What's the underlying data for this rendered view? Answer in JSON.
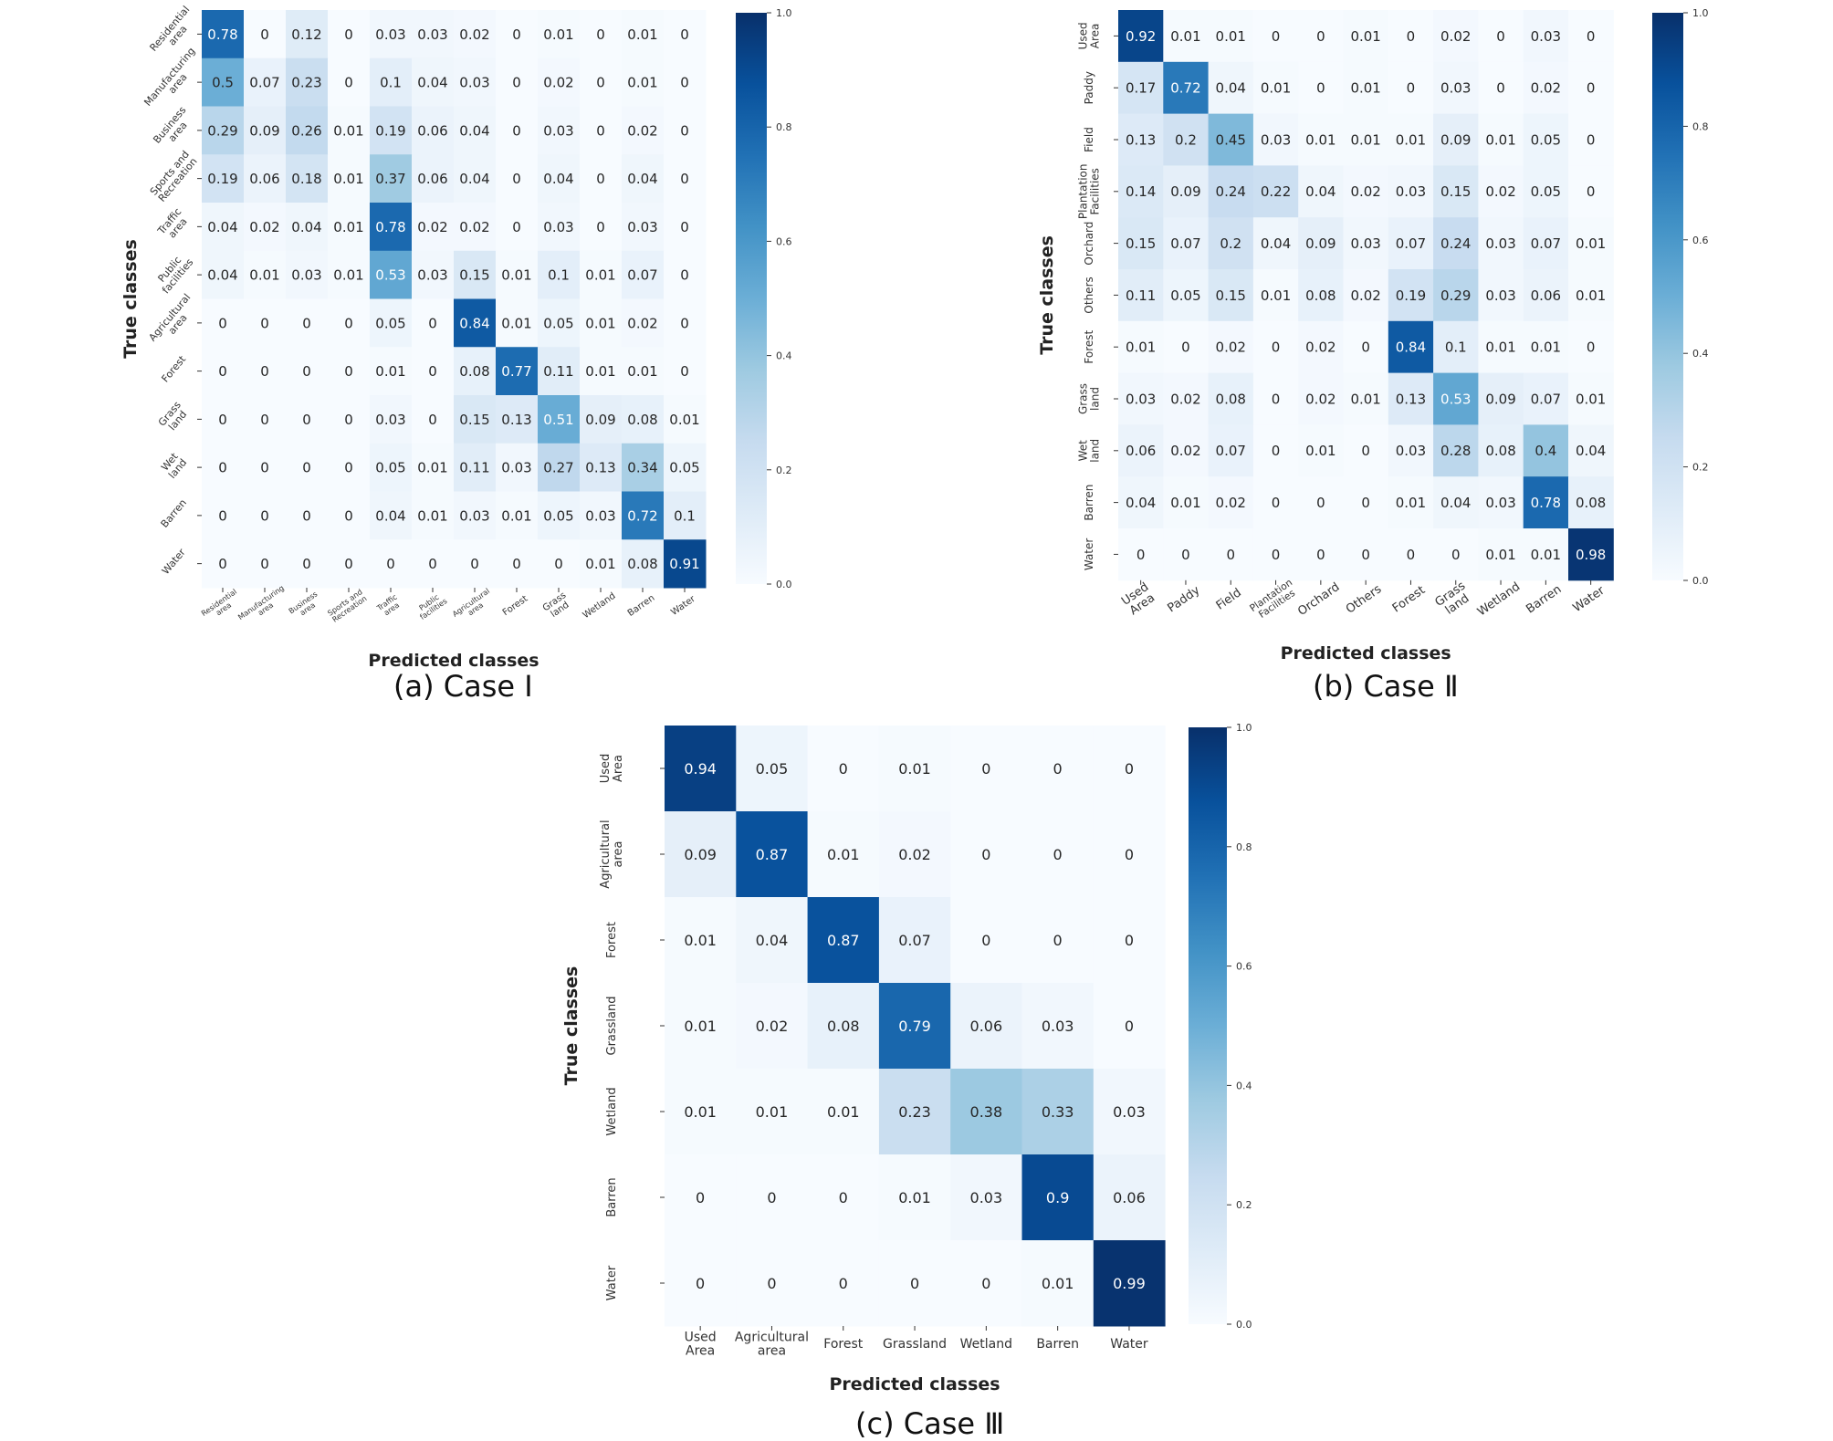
{
  "chart_data": [
    {
      "type": "heatmap",
      "caption": "(a) Case Ⅰ",
      "xlabel": "Predicted classes",
      "ylabel": "True classes",
      "colorbar": {
        "min": 0.0,
        "max": 1.0,
        "ticks": [
          "0.0",
          "0.2",
          "0.4",
          "0.6",
          "0.8",
          "1.0"
        ],
        "colormap": "Blues"
      },
      "row_labels": [
        "Residential area",
        "Manufacturing area",
        "Business area",
        "Sports and Recreation",
        "Traffic area",
        "Public facilities",
        "Agricultural area",
        "Forest",
        "Grass land",
        "Wet land",
        "Barren",
        "Water"
      ],
      "col_labels": [
        "Residential area",
        "Manufacturing area",
        "Business area",
        "Sports and Recreation",
        "Traffic area",
        "Public facilities",
        "Agricultural area",
        "Forest",
        "Grass land",
        "Wetland",
        "Barren",
        "Water"
      ],
      "values": [
        [
          "0.78",
          "0",
          "0.12",
          "0",
          "0.03",
          "0.03",
          "0.02",
          "0",
          "0.01",
          "0",
          "0.01",
          "0"
        ],
        [
          "0.5",
          "0.07",
          "0.23",
          "0",
          "0.1",
          "0.04",
          "0.03",
          "0",
          "0.02",
          "0",
          "0.01",
          "0"
        ],
        [
          "0.29",
          "0.09",
          "0.26",
          "0.01",
          "0.19",
          "0.06",
          "0.04",
          "0",
          "0.03",
          "0",
          "0.02",
          "0"
        ],
        [
          "0.19",
          "0.06",
          "0.18",
          "0.01",
          "0.37",
          "0.06",
          "0.04",
          "0",
          "0.04",
          "0",
          "0.04",
          "0"
        ],
        [
          "0.04",
          "0.02",
          "0.04",
          "0.01",
          "0.78",
          "0.02",
          "0.02",
          "0",
          "0.03",
          "0",
          "0.03",
          "0"
        ],
        [
          "0.04",
          "0.01",
          "0.03",
          "0.01",
          "0.53",
          "0.03",
          "0.15",
          "0.01",
          "0.1",
          "0.01",
          "0.07",
          "0"
        ],
        [
          "0",
          "0",
          "0",
          "0",
          "0.05",
          "0",
          "0.84",
          "0.01",
          "0.05",
          "0.01",
          "0.02",
          "0"
        ],
        [
          "0",
          "0",
          "0",
          "0",
          "0.01",
          "0",
          "0.08",
          "0.77",
          "0.11",
          "0.01",
          "0.01",
          "0"
        ],
        [
          "0",
          "0",
          "0",
          "0",
          "0.03",
          "0",
          "0.15",
          "0.13",
          "0.51",
          "0.09",
          "0.08",
          "0.01"
        ],
        [
          "0",
          "0",
          "0",
          "0",
          "0.05",
          "0.01",
          "0.11",
          "0.03",
          "0.27",
          "0.13",
          "0.34",
          "0.05"
        ],
        [
          "0",
          "0",
          "0",
          "0",
          "0.04",
          "0.01",
          "0.03",
          "0.01",
          "0.05",
          "0.03",
          "0.72",
          "0.1"
        ],
        [
          "0",
          "0",
          "0",
          "0",
          "0",
          "0",
          "0",
          "0",
          "0",
          "0.01",
          "0.08",
          "0.91"
        ]
      ]
    },
    {
      "type": "heatmap",
      "caption": "(b) Case Ⅱ",
      "xlabel": "Predicted classes",
      "ylabel": "True classes",
      "colorbar": {
        "min": 0.0,
        "max": 1.0,
        "ticks": [
          "0.0",
          "0.2",
          "0.4",
          "0.6",
          "0.8",
          "1.0"
        ],
        "colormap": "Blues"
      },
      "row_labels": [
        "Used Area",
        "Paddy",
        "Field",
        "Plantation Facilities",
        "Orchard",
        "Others",
        "Forest",
        "Grass land",
        "Wet land",
        "Barren",
        "Water"
      ],
      "col_labels": [
        "Used Area",
        "Paddy",
        "Field",
        "Plantation Facilities",
        "Orchard",
        "Others",
        "Forest",
        "Grass land",
        "Wetland",
        "Barren",
        "Water"
      ],
      "values": [
        [
          "0.92",
          "0.01",
          "0.01",
          "0",
          "0",
          "0.01",
          "0",
          "0.02",
          "0",
          "0.03",
          "0"
        ],
        [
          "0.17",
          "0.72",
          "0.04",
          "0.01",
          "0",
          "0.01",
          "0",
          "0.03",
          "0",
          "0.02",
          "0"
        ],
        [
          "0.13",
          "0.2",
          "0.45",
          "0.03",
          "0.01",
          "0.01",
          "0.01",
          "0.09",
          "0.01",
          "0.05",
          "0"
        ],
        [
          "0.14",
          "0.09",
          "0.24",
          "0.22",
          "0.04",
          "0.02",
          "0.03",
          "0.15",
          "0.02",
          "0.05",
          "0"
        ],
        [
          "0.15",
          "0.07",
          "0.2",
          "0.04",
          "0.09",
          "0.03",
          "0.07",
          "0.24",
          "0.03",
          "0.07",
          "0.01"
        ],
        [
          "0.11",
          "0.05",
          "0.15",
          "0.01",
          "0.08",
          "0.02",
          "0.19",
          "0.29",
          "0.03",
          "0.06",
          "0.01"
        ],
        [
          "0.01",
          "0",
          "0.02",
          "0",
          "0.02",
          "0",
          "0.84",
          "0.1",
          "0.01",
          "0.01",
          "0"
        ],
        [
          "0.03",
          "0.02",
          "0.08",
          "0",
          "0.02",
          "0.01",
          "0.13",
          "0.53",
          "0.09",
          "0.07",
          "0.01"
        ],
        [
          "0.06",
          "0.02",
          "0.07",
          "0",
          "0.01",
          "0",
          "0.03",
          "0.28",
          "0.08",
          "0.4",
          "0.04"
        ],
        [
          "0.04",
          "0.01",
          "0.02",
          "0",
          "0",
          "0",
          "0.01",
          "0.04",
          "0.03",
          "0.78",
          "0.08"
        ],
        [
          "0",
          "0",
          "0",
          "0",
          "0",
          "0",
          "0",
          "0",
          "0.01",
          "0.01",
          "0.98"
        ]
      ]
    },
    {
      "type": "heatmap",
      "caption": "(c) Case Ⅲ",
      "xlabel": "Predicted classes",
      "ylabel": "True classes",
      "colorbar": {
        "min": 0.0,
        "max": 1.0,
        "ticks": [
          "0.0",
          "0.2",
          "0.4",
          "0.6",
          "0.8",
          "1.0"
        ],
        "colormap": "Blues"
      },
      "row_labels": [
        "Used Area",
        "Agricultural area",
        "Forest",
        "Grassland",
        "Wetland",
        "Barren",
        "Water"
      ],
      "col_labels": [
        "Used Area",
        "Agricultural area",
        "Forest",
        "Grassland",
        "Wetland",
        "Barren",
        "Water"
      ],
      "values": [
        [
          "0.94",
          "0.05",
          "0",
          "0.01",
          "0",
          "0",
          "0"
        ],
        [
          "0.09",
          "0.87",
          "0.01",
          "0.02",
          "0",
          "0",
          "0"
        ],
        [
          "0.01",
          "0.04",
          "0.87",
          "0.07",
          "0",
          "0",
          "0"
        ],
        [
          "0.01",
          "0.02",
          "0.08",
          "0.79",
          "0.06",
          "0.03",
          "0"
        ],
        [
          "0.01",
          "0.01",
          "0.01",
          "0.23",
          "0.38",
          "0.33",
          "0.03"
        ],
        [
          "0",
          "0",
          "0",
          "0.01",
          "0.03",
          "0.9",
          "0.06"
        ],
        [
          "0",
          "0",
          "0",
          "0",
          "0",
          "0.01",
          "0.99"
        ]
      ]
    }
  ]
}
